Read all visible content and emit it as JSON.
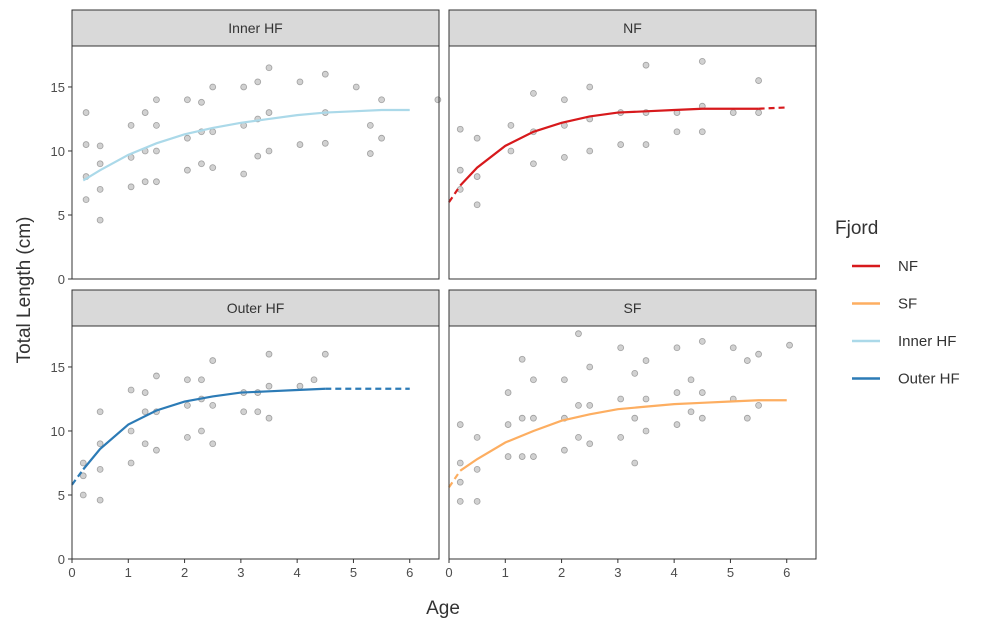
{
  "chart_data": {
    "type": "scatter",
    "x_label": "Age",
    "y_label": "Total Length (cm)",
    "xlim": [
      0,
      6.52
    ],
    "ylim": [
      0,
      18.2
    ],
    "xticks": [
      0,
      1,
      2,
      3,
      4,
      5,
      6
    ],
    "yticks": [
      0,
      5,
      10,
      15
    ],
    "legend": {
      "title": "Fjord",
      "entries": [
        {
          "name": "NF",
          "color": "#d7191c"
        },
        {
          "name": "SF",
          "color": "#fdae61"
        },
        {
          "name": "Inner HF",
          "color": "#abd9e9"
        },
        {
          "name": "Outer HF",
          "color": "#2c7bb6"
        }
      ]
    },
    "facets": [
      {
        "title": "Inner HF",
        "color": "#abd9e9",
        "points": [
          [
            0.25,
            6.2
          ],
          [
            0.25,
            8
          ],
          [
            0.25,
            10.5
          ],
          [
            0.25,
            13
          ],
          [
            0.5,
            4.6
          ],
          [
            0.5,
            7
          ],
          [
            0.5,
            9
          ],
          [
            0.5,
            10.4
          ],
          [
            1.05,
            7.2
          ],
          [
            1.05,
            9.5
          ],
          [
            1.05,
            12
          ],
          [
            1.3,
            7.6
          ],
          [
            1.3,
            10
          ],
          [
            1.3,
            13
          ],
          [
            1.5,
            7.6
          ],
          [
            1.5,
            10
          ],
          [
            1.5,
            12
          ],
          [
            1.5,
            14
          ],
          [
            2.05,
            8.5
          ],
          [
            2.05,
            11
          ],
          [
            2.05,
            14
          ],
          [
            2.3,
            9
          ],
          [
            2.3,
            11.5
          ],
          [
            2.3,
            13.8
          ],
          [
            2.5,
            8.7
          ],
          [
            2.5,
            11.5
          ],
          [
            2.5,
            15
          ],
          [
            3.05,
            8.2
          ],
          [
            3.05,
            12
          ],
          [
            3.05,
            15
          ],
          [
            3.3,
            9.6
          ],
          [
            3.3,
            12.5
          ],
          [
            3.3,
            15.4
          ],
          [
            3.5,
            10
          ],
          [
            3.5,
            13
          ],
          [
            3.5,
            16.5
          ],
          [
            4.05,
            10.5
          ],
          [
            4.05,
            15.4
          ],
          [
            4.5,
            10.6
          ],
          [
            4.5,
            13
          ],
          [
            4.5,
            16
          ],
          [
            5.05,
            15
          ],
          [
            5.3,
            9.8
          ],
          [
            5.3,
            12
          ],
          [
            5.5,
            11
          ],
          [
            5.5,
            14
          ],
          [
            6.5,
            14
          ]
        ],
        "fit": [
          {
            "style": "solid",
            "x": [
              0.2,
              0.5,
              1,
              1.5,
              2,
              2.5,
              3,
              3.5,
              4,
              4.5,
              5,
              5.5,
              6
            ],
            "values": [
              7.7,
              8.5,
              9.7,
              10.6,
              11.3,
              11.8,
              12.2,
              12.5,
              12.8,
              13.0,
              13.1,
              13.2,
              13.2
            ]
          }
        ]
      },
      {
        "title": "NF",
        "color": "#d7191c",
        "points": [
          [
            0.2,
            7
          ],
          [
            0.2,
            8.5
          ],
          [
            0.2,
            11.7
          ],
          [
            0.5,
            5.8
          ],
          [
            0.5,
            8
          ],
          [
            0.5,
            11
          ],
          [
            1.1,
            10
          ],
          [
            1.1,
            12
          ],
          [
            1.5,
            9
          ],
          [
            1.5,
            11.5
          ],
          [
            1.5,
            14.5
          ],
          [
            2.05,
            9.5
          ],
          [
            2.05,
            12
          ],
          [
            2.05,
            14
          ],
          [
            2.5,
            10
          ],
          [
            2.5,
            12.5
          ],
          [
            2.5,
            15
          ],
          [
            3.05,
            10.5
          ],
          [
            3.05,
            13
          ],
          [
            3.5,
            10.5
          ],
          [
            3.5,
            13
          ],
          [
            3.5,
            16.7
          ],
          [
            4.05,
            11.5
          ],
          [
            4.05,
            13
          ],
          [
            4.5,
            11.5
          ],
          [
            4.5,
            13.5
          ],
          [
            4.5,
            17
          ],
          [
            5.05,
            13
          ],
          [
            5.5,
            13
          ],
          [
            5.5,
            15.5
          ]
        ],
        "fit": [
          {
            "style": "dashed",
            "x": [
              0,
              0.2
            ],
            "values": [
              6.0,
              7.3
            ]
          },
          {
            "style": "solid",
            "x": [
              0.2,
              0.5,
              1,
              1.5,
              2,
              2.5,
              3,
              3.5,
              4,
              4.5,
              5,
              5.5
            ],
            "values": [
              7.3,
              8.7,
              10.4,
              11.5,
              12.2,
              12.7,
              13.0,
              13.1,
              13.2,
              13.3,
              13.3,
              13.3
            ]
          },
          {
            "style": "dashed",
            "x": [
              5.5,
              6
            ],
            "values": [
              13.3,
              13.4
            ]
          }
        ]
      },
      {
        "title": "Outer HF",
        "color": "#2c7bb6",
        "points": [
          [
            0.2,
            5
          ],
          [
            0.2,
            6.5
          ],
          [
            0.2,
            7.5
          ],
          [
            0.5,
            4.6
          ],
          [
            0.5,
            7
          ],
          [
            0.5,
            9
          ],
          [
            0.5,
            11.5
          ],
          [
            1.05,
            7.5
          ],
          [
            1.05,
            10
          ],
          [
            1.05,
            13.2
          ],
          [
            1.3,
            9
          ],
          [
            1.3,
            11.5
          ],
          [
            1.3,
            13
          ],
          [
            1.5,
            8.5
          ],
          [
            1.5,
            11.5
          ],
          [
            1.5,
            14.3
          ],
          [
            2.05,
            9.5
          ],
          [
            2.05,
            12
          ],
          [
            2.05,
            14
          ],
          [
            2.3,
            10
          ],
          [
            2.3,
            12.5
          ],
          [
            2.3,
            14
          ],
          [
            2.5,
            9
          ],
          [
            2.5,
            12
          ],
          [
            2.5,
            15.5
          ],
          [
            3.05,
            11.5
          ],
          [
            3.05,
            13
          ],
          [
            3.3,
            11.5
          ],
          [
            3.3,
            13
          ],
          [
            3.5,
            11
          ],
          [
            3.5,
            13.5
          ],
          [
            3.5,
            16
          ],
          [
            4.05,
            13.5
          ],
          [
            4.3,
            14
          ],
          [
            4.5,
            16
          ]
        ],
        "fit": [
          {
            "style": "dashed",
            "x": [
              0,
              0.2
            ],
            "values": [
              5.8,
              7.0
            ]
          },
          {
            "style": "solid",
            "x": [
              0.2,
              0.5,
              1,
              1.5,
              2,
              2.5,
              3,
              3.5,
              4,
              4.5
            ],
            "values": [
              7.0,
              8.6,
              10.5,
              11.6,
              12.3,
              12.7,
              13.0,
              13.1,
              13.2,
              13.3
            ]
          },
          {
            "style": "dashed",
            "x": [
              4.5,
              6
            ],
            "values": [
              13.3,
              13.3
            ]
          }
        ]
      },
      {
        "title": "SF",
        "color": "#fdae61",
        "points": [
          [
            0.2,
            4.5
          ],
          [
            0.2,
            6
          ],
          [
            0.2,
            7.5
          ],
          [
            0.2,
            10.5
          ],
          [
            0.5,
            4.5
          ],
          [
            0.5,
            7
          ],
          [
            0.5,
            9.5
          ],
          [
            1.05,
            8
          ],
          [
            1.05,
            10.5
          ],
          [
            1.05,
            13
          ],
          [
            1.3,
            8
          ],
          [
            1.3,
            11
          ],
          [
            1.3,
            15.6
          ],
          [
            1.5,
            8
          ],
          [
            1.5,
            11
          ],
          [
            1.5,
            14
          ],
          [
            2.05,
            8.5
          ],
          [
            2.05,
            11
          ],
          [
            2.05,
            14
          ],
          [
            2.3,
            9.5
          ],
          [
            2.3,
            12
          ],
          [
            2.3,
            17.6
          ],
          [
            2.5,
            9
          ],
          [
            2.5,
            12
          ],
          [
            2.5,
            15
          ],
          [
            3.05,
            9.5
          ],
          [
            3.05,
            12.5
          ],
          [
            3.05,
            16.5
          ],
          [
            3.3,
            7.5
          ],
          [
            3.3,
            11
          ],
          [
            3.3,
            14.5
          ],
          [
            3.5,
            10
          ],
          [
            3.5,
            12.5
          ],
          [
            3.5,
            15.5
          ],
          [
            4.05,
            10.5
          ],
          [
            4.05,
            13
          ],
          [
            4.05,
            16.5
          ],
          [
            4.3,
            11.5
          ],
          [
            4.3,
            14
          ],
          [
            4.5,
            11
          ],
          [
            4.5,
            13
          ],
          [
            4.5,
            17
          ],
          [
            5.05,
            12.5
          ],
          [
            5.05,
            16.5
          ],
          [
            5.3,
            11
          ],
          [
            5.3,
            15.5
          ],
          [
            5.5,
            12
          ],
          [
            5.5,
            16
          ],
          [
            6.05,
            16.7
          ]
        ],
        "fit": [
          {
            "style": "dashed",
            "x": [
              0,
              0.2
            ],
            "values": [
              5.6,
              6.9
            ]
          },
          {
            "style": "solid",
            "x": [
              0.2,
              0.5,
              1,
              1.5,
              2,
              2.5,
              3,
              3.5,
              4,
              4.5,
              5,
              5.5,
              6
            ],
            "values": [
              6.9,
              7.8,
              9.1,
              10.0,
              10.8,
              11.3,
              11.7,
              11.9,
              12.1,
              12.2,
              12.3,
              12.4,
              12.4
            ]
          }
        ]
      }
    ]
  }
}
